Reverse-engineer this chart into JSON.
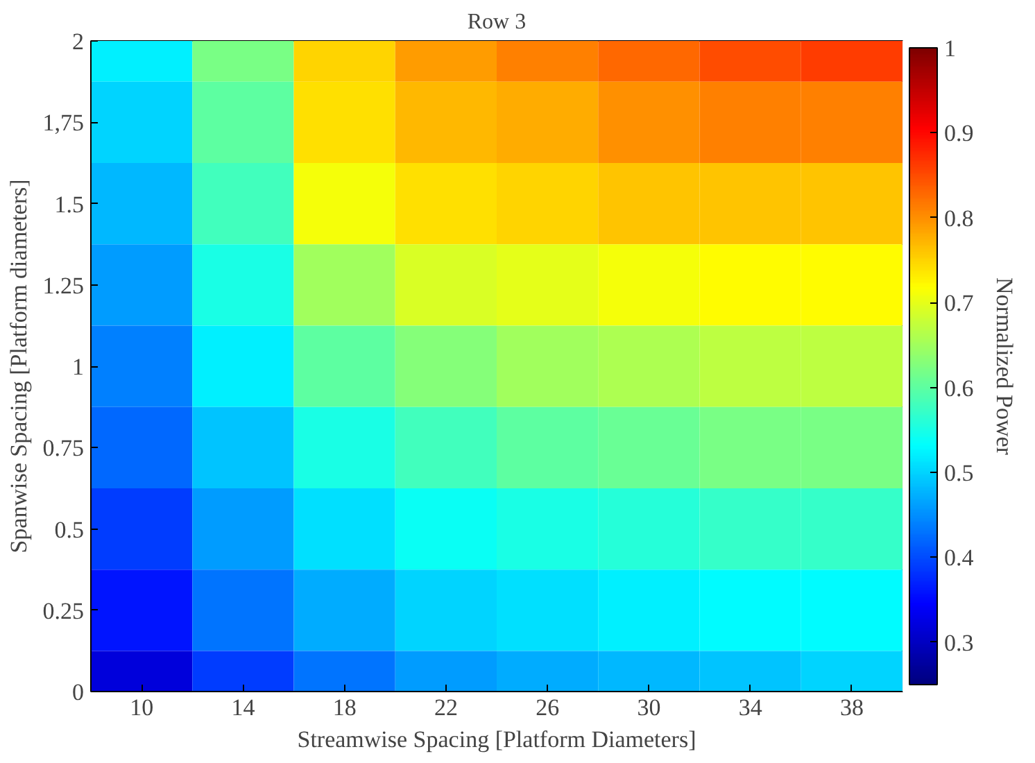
{
  "chart_data": {
    "type": "heatmap",
    "title": "Row 3",
    "xlabel": "Streamwise Spacing [Platform Diameters]",
    "ylabel": "Spanwise Spacing [Platform diameters]",
    "clabel": "Normalized Power",
    "categories": [
      "10",
      "14",
      "18",
      "22",
      "26",
      "30",
      "34",
      "38"
    ],
    "y_categories": [
      "2",
      "1,75",
      "1.5",
      "1.25",
      "1",
      "0.75",
      "0.5",
      "0.25",
      "0"
    ],
    "clim": [
      0.25,
      1
    ],
    "cticks": [
      0.3,
      0.4,
      0.5,
      0.6,
      0.7,
      0.8,
      0.9,
      1
    ],
    "cells": [
      [
        0.52,
        0.62,
        0.75,
        0.79,
        0.81,
        0.83,
        0.85,
        0.86
      ],
      [
        0.5,
        0.6,
        0.74,
        0.77,
        0.78,
        0.8,
        0.81,
        0.81
      ],
      [
        0.48,
        0.58,
        0.71,
        0.74,
        0.75,
        0.76,
        0.76,
        0.76
      ],
      [
        0.46,
        0.55,
        0.65,
        0.69,
        0.7,
        0.71,
        0.72,
        0.72
      ],
      [
        0.44,
        0.52,
        0.6,
        0.63,
        0.65,
        0.66,
        0.67,
        0.67
      ],
      [
        0.42,
        0.49,
        0.55,
        0.58,
        0.6,
        0.61,
        0.62,
        0.62
      ],
      [
        0.39,
        0.46,
        0.51,
        0.54,
        0.55,
        0.56,
        0.57,
        0.57
      ],
      [
        0.36,
        0.43,
        0.47,
        0.5,
        0.51,
        0.52,
        0.53,
        0.53
      ],
      [
        0.32,
        0.39,
        0.43,
        0.46,
        0.47,
        0.48,
        0.49,
        0.5
      ]
    ]
  }
}
